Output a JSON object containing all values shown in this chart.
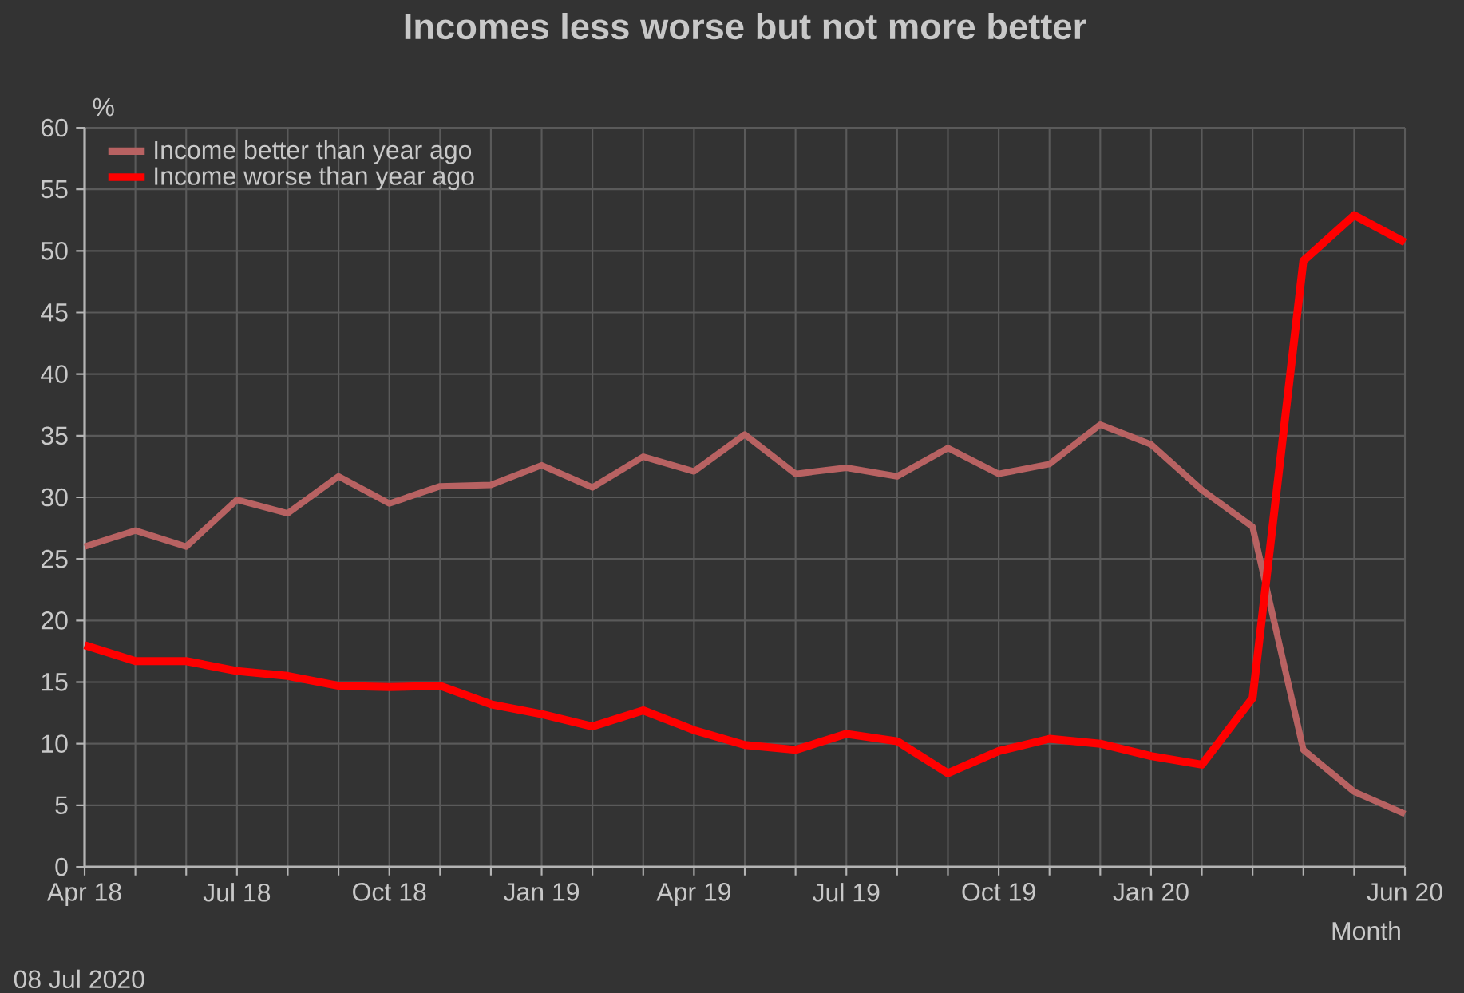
{
  "chart_data": {
    "type": "line",
    "title": "Incomes less worse but not more better",
    "xlabel": "Month",
    "ylabel": "%",
    "categories": [
      "Apr 18",
      null,
      null,
      "Jul 18",
      null,
      null,
      "Oct 18",
      null,
      null,
      "Jan 19",
      null,
      null,
      "Apr 19",
      null,
      null,
      "Jul 19",
      null,
      null,
      "Oct 19",
      null,
      null,
      "Jan 20",
      null,
      null,
      null,
      null,
      "Jun 20"
    ],
    "series": [
      {
        "name": "Income better than year ago",
        "color": "#b86262",
        "values": [
          26.0,
          27.3,
          26.0,
          29.8,
          28.7,
          31.7,
          29.5,
          30.9,
          31.0,
          32.6,
          30.8,
          33.3,
          32.1,
          35.1,
          31.9,
          32.4,
          31.7,
          34.0,
          31.9,
          32.7,
          35.9,
          34.3,
          30.6,
          27.6,
          9.5,
          6.1,
          4.3
        ]
      },
      {
        "name": "Income worse than year ago",
        "color": "#ff0000",
        "values": [
          18.0,
          16.7,
          16.7,
          15.9,
          15.5,
          14.7,
          14.6,
          14.7,
          13.2,
          12.4,
          11.4,
          12.7,
          11.1,
          9.9,
          9.5,
          10.8,
          10.2,
          7.6,
          9.4,
          10.4,
          10.0,
          9.0,
          8.3,
          13.7,
          49.2,
          52.9,
          50.7
        ]
      }
    ],
    "ylim": [
      0,
      60
    ],
    "yticks": [
      0,
      5,
      10,
      15,
      20,
      25,
      30,
      35,
      40,
      45,
      50,
      55,
      60
    ],
    "grid": true,
    "legend": "top left",
    "annotations": [
      "08 Jul 2020"
    ]
  }
}
